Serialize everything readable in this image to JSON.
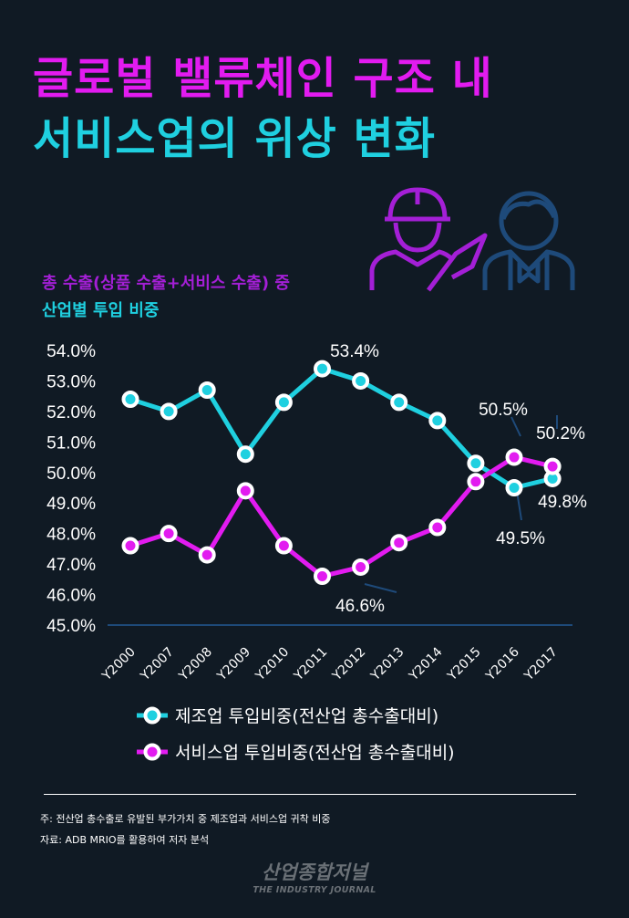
{
  "title": {
    "line1": "글로벌 밸류체인 구조 내",
    "line2": "서비스업의 위상 변화"
  },
  "subtitle": {
    "line1": "총 수출(상품 수출+서비스 수출) 중",
    "line2": "산업별 투입 비중"
  },
  "colors": {
    "manufacturing": "#1fd0e0",
    "services": "#e21bf0",
    "background": "#101a24",
    "axis": "#1e4a7a"
  },
  "icons": [
    "construction-worker-icon",
    "businessman-icon"
  ],
  "chart_data": {
    "type": "line",
    "categories": [
      "Y2000",
      "Y2007",
      "Y2008",
      "Y2009",
      "Y2010",
      "Y2011",
      "Y2012",
      "Y2013",
      "Y2014",
      "Y2015",
      "Y2016",
      "Y2017"
    ],
    "ylim": [
      45.0,
      54.0
    ],
    "yticks": [
      "54.0%",
      "53.0%",
      "52.0%",
      "51.0%",
      "50.0%",
      "49.0%",
      "48.0%",
      "47.0%",
      "46.0%",
      "45.0%"
    ],
    "grid": false,
    "legend_position": "bottom",
    "series": [
      {
        "name": "제조업 투입비중(전산업 총수출대비)",
        "color": "#1fd0e0",
        "values": [
          52.4,
          52.0,
          52.7,
          50.6,
          52.3,
          53.4,
          53.0,
          52.3,
          51.7,
          50.3,
          49.5,
          49.8
        ]
      },
      {
        "name": "서비스업 투입비중(전산업 총수출대비)",
        "color": "#e21bf0",
        "values": [
          47.6,
          48.0,
          47.3,
          49.4,
          47.6,
          46.6,
          46.9,
          47.7,
          48.2,
          49.7,
          50.5,
          50.2
        ]
      }
    ],
    "annotations": [
      {
        "text": "53.4%",
        "series": 0,
        "index": 5
      },
      {
        "text": "46.6%",
        "series": 1,
        "index": 5
      },
      {
        "text": "50.5%",
        "series": 1,
        "index": 10
      },
      {
        "text": "50.2%",
        "series": 1,
        "index": 11
      },
      {
        "text": "49.5%",
        "series": 0,
        "index": 10
      },
      {
        "text": "49.8%",
        "series": 0,
        "index": 11
      }
    ]
  },
  "footer": {
    "note": "주: 전산업 총수출로 유발된 부가가치 중 제조업과 서비스업 귀착 비중",
    "source": "자료: ADB MRIO를 활용하여 저자 분석",
    "logo_ko": "산업종합저널",
    "logo_en": "THE INDUSTRY JOURNAL"
  }
}
